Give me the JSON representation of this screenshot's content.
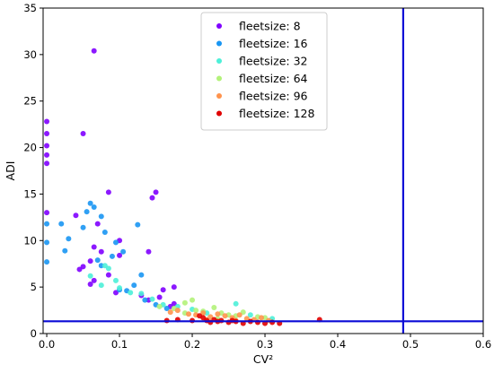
{
  "chart_data": {
    "type": "scatter",
    "xlabel": "CV²",
    "ylabel": "ADI",
    "xlim": [
      -0.005,
      0.6
    ],
    "ylim": [
      0,
      35
    ],
    "xticks": [
      "0.0",
      "0.1",
      "0.2",
      "0.3",
      "0.4",
      "0.5",
      "0.6"
    ],
    "xtick_values": [
      0.0,
      0.1,
      0.2,
      0.3,
      0.4,
      0.5,
      0.6
    ],
    "yticks": [
      "0",
      "5",
      "10",
      "15",
      "20",
      "25",
      "30",
      "35"
    ],
    "ytick_values": [
      0,
      5,
      10,
      15,
      20,
      25,
      30,
      35
    ],
    "legend_placement": "upper-center",
    "reference_lines": [
      {
        "orientation": "vertical",
        "value": 0.49,
        "color": "#0a0ad6"
      },
      {
        "orientation": "horizontal",
        "value": 1.32,
        "color": "#0a0ad6"
      }
    ],
    "series": [
      {
        "name": "fleetsize: 8",
        "color": "#8000ff",
        "points": [
          [
            0.0,
            22.8
          ],
          [
            0.0,
            21.5
          ],
          [
            0.0,
            20.2
          ],
          [
            0.0,
            19.2
          ],
          [
            0.0,
            18.3
          ],
          [
            0.0,
            13.0
          ],
          [
            0.065,
            30.4
          ],
          [
            0.05,
            21.5
          ],
          [
            0.085,
            15.2
          ],
          [
            0.15,
            15.2
          ],
          [
            0.145,
            14.6
          ],
          [
            0.04,
            12.7
          ],
          [
            0.07,
            11.8
          ],
          [
            0.1,
            10.0
          ],
          [
            0.065,
            9.3
          ],
          [
            0.075,
            8.8
          ],
          [
            0.14,
            8.8
          ],
          [
            0.1,
            8.4
          ],
          [
            0.06,
            7.8
          ],
          [
            0.045,
            6.9
          ],
          [
            0.05,
            7.2
          ],
          [
            0.085,
            6.3
          ],
          [
            0.065,
            5.7
          ],
          [
            0.175,
            5.0
          ],
          [
            0.06,
            5.3
          ],
          [
            0.16,
            4.7
          ],
          [
            0.095,
            4.4
          ],
          [
            0.13,
            4.1
          ],
          [
            0.155,
            3.9
          ],
          [
            0.14,
            3.6
          ],
          [
            0.175,
            3.2
          ],
          [
            0.17,
            2.9
          ]
        ]
      },
      {
        "name": "fleetsize: 16",
        "color": "#1996f3",
        "points": [
          [
            0.0,
            11.8
          ],
          [
            0.0,
            9.8
          ],
          [
            0.0,
            7.7
          ],
          [
            0.02,
            11.8
          ],
          [
            0.03,
            10.2
          ],
          [
            0.025,
            8.9
          ],
          [
            0.05,
            11.4
          ],
          [
            0.055,
            13.1
          ],
          [
            0.06,
            14.0
          ],
          [
            0.065,
            13.6
          ],
          [
            0.075,
            12.6
          ],
          [
            0.125,
            11.7
          ],
          [
            0.08,
            10.9
          ],
          [
            0.095,
            9.8
          ],
          [
            0.09,
            8.3
          ],
          [
            0.07,
            7.9
          ],
          [
            0.075,
            7.3
          ],
          [
            0.105,
            8.8
          ],
          [
            0.13,
            6.3
          ],
          [
            0.12,
            5.2
          ],
          [
            0.1,
            4.7
          ],
          [
            0.11,
            4.6
          ],
          [
            0.135,
            3.6
          ],
          [
            0.15,
            3.1
          ],
          [
            0.165,
            2.7
          ]
        ]
      },
      {
        "name": "fleetsize: 32",
        "color": "#4df0d8",
        "points": [
          [
            0.08,
            7.3
          ],
          [
            0.085,
            7.0
          ],
          [
            0.06,
            6.2
          ],
          [
            0.095,
            5.7
          ],
          [
            0.075,
            5.2
          ],
          [
            0.1,
            4.9
          ],
          [
            0.115,
            4.4
          ],
          [
            0.13,
            4.3
          ],
          [
            0.145,
            3.7
          ],
          [
            0.16,
            3.1
          ],
          [
            0.18,
            2.9
          ],
          [
            0.2,
            2.6
          ],
          [
            0.22,
            2.2
          ],
          [
            0.26,
            3.2
          ],
          [
            0.28,
            2.0
          ],
          [
            0.31,
            1.6
          ]
        ]
      },
      {
        "name": "fleetsize: 64",
        "color": "#b3f27a",
        "points": [
          [
            0.155,
            2.9
          ],
          [
            0.175,
            2.7
          ],
          [
            0.19,
            3.3
          ],
          [
            0.2,
            3.6
          ],
          [
            0.205,
            2.5
          ],
          [
            0.215,
            2.4
          ],
          [
            0.23,
            2.8
          ],
          [
            0.24,
            2.2
          ],
          [
            0.25,
            2.0
          ],
          [
            0.26,
            1.9
          ],
          [
            0.27,
            2.3
          ],
          [
            0.29,
            1.8
          ],
          [
            0.3,
            1.7
          ],
          [
            0.235,
            1.6
          ],
          [
            0.19,
            2.2
          ]
        ]
      },
      {
        "name": "fleetsize: 96",
        "color": "#ff934d",
        "points": [
          [
            0.17,
            2.3
          ],
          [
            0.18,
            2.5
          ],
          [
            0.195,
            2.1
          ],
          [
            0.205,
            2.0
          ],
          [
            0.215,
            2.2
          ],
          [
            0.225,
            1.8
          ],
          [
            0.235,
            2.1
          ],
          [
            0.245,
            1.9
          ],
          [
            0.255,
            1.7
          ],
          [
            0.265,
            2.0
          ],
          [
            0.275,
            1.6
          ],
          [
            0.285,
            1.5
          ],
          [
            0.295,
            1.7
          ],
          [
            0.305,
            1.4
          ],
          [
            0.22,
            1.5
          ],
          [
            0.26,
            1.4
          ]
        ]
      },
      {
        "name": "fleetsize: 128",
        "color": "#e00000",
        "points": [
          [
            0.165,
            1.4
          ],
          [
            0.18,
            1.5
          ],
          [
            0.2,
            1.4
          ],
          [
            0.215,
            1.7
          ],
          [
            0.22,
            1.4
          ],
          [
            0.225,
            1.2
          ],
          [
            0.23,
            1.5
          ],
          [
            0.235,
            1.3
          ],
          [
            0.24,
            1.4
          ],
          [
            0.25,
            1.2
          ],
          [
            0.255,
            1.4
          ],
          [
            0.26,
            1.3
          ],
          [
            0.27,
            1.1
          ],
          [
            0.28,
            1.3
          ],
          [
            0.29,
            1.2
          ],
          [
            0.3,
            1.1
          ],
          [
            0.31,
            1.2
          ],
          [
            0.32,
            1.1
          ],
          [
            0.375,
            1.5
          ],
          [
            0.21,
            1.9
          ]
        ]
      }
    ]
  }
}
